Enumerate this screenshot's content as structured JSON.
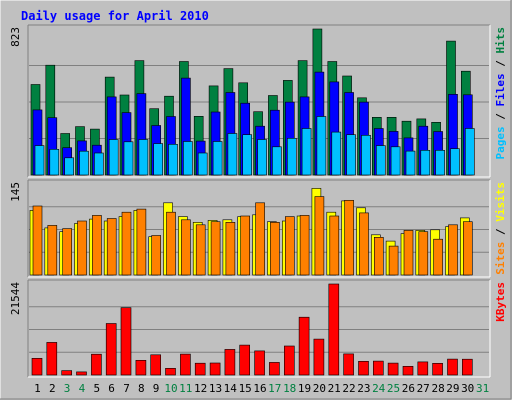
{
  "chart_data": {
    "type": "bar",
    "title": "Daily usage for April 2010",
    "colors": {
      "background": "#c0c0c0",
      "title": "#0000ff",
      "hits": "#008040",
      "files": "#0000ff",
      "pages": "#00c0ff",
      "visits": "#ffff00",
      "sites": "#ff8000",
      "kbytes": "#ff0000",
      "weekend": "#008040",
      "weekday": "#000000"
    },
    "days": [
      "1",
      "2",
      "3",
      "4",
      "5",
      "6",
      "7",
      "8",
      "9",
      "10",
      "11",
      "12",
      "13",
      "14",
      "15",
      "16",
      "17",
      "18",
      "19",
      "20",
      "21",
      "22",
      "23",
      "24",
      "25",
      "26",
      "27",
      "28",
      "29",
      "30",
      "31"
    ],
    "weekend_days": [
      "3",
      "4",
      "10",
      "11",
      "17",
      "18",
      "24",
      "25",
      "31"
    ],
    "panels": [
      {
        "id": "usage",
        "ytick": "823",
        "ymax": 823,
        "legend": [
          {
            "text": "Pages",
            "color": "#00c0ff"
          },
          {
            "text": " / ",
            "color": "#000000"
          },
          {
            "text": "Files",
            "color": "#0000ff"
          },
          {
            "text": " / ",
            "color": "#000000"
          },
          {
            "text": "Hits",
            "color": "#008040"
          }
        ],
        "series": [
          {
            "name": "Hits",
            "color": "#008040",
            "values": [
              510,
              619,
              234,
              273,
              259,
              552,
              451,
              645,
              374,
              444,
              640,
              331,
              502,
              600,
              520,
              357,
              448,
              533,
              645,
              823,
              640,
              558,
              435,
              325,
              325,
              303,
              316,
              297,
              755,
              585
            ]
          },
          {
            "name": "Files",
            "color": "#0000ff",
            "values": [
              367,
              323,
              154,
              192,
              168,
              440,
              352,
              459,
              279,
              330,
              546,
              191,
              355,
              465,
              405,
              275,
              365,
              411,
              440,
              580,
              525,
              465,
              411,
              262,
              246,
              209,
              275,
              245,
              455,
              452
            ]
          },
          {
            "name": "Pages",
            "color": "#00c0ff",
            "values": [
              166,
              145,
              97,
              134,
              124,
              200,
              187,
              200,
              177,
              173,
              189,
              124,
              189,
              234,
              227,
              200,
              159,
              207,
              262,
              330,
              242,
              227,
              224,
              166,
              159,
              135,
              139,
              139,
              148,
              262
            ]
          }
        ]
      },
      {
        "id": "visitors",
        "ytick": "145",
        "ymax": 145,
        "legend": [
          {
            "text": "Sites",
            "color": "#ff8000"
          },
          {
            "text": " / ",
            "color": "#000000"
          },
          {
            "text": "Visits",
            "color": "#ffff00"
          }
        ],
        "series": [
          {
            "name": "Visits",
            "color": "#ffff00",
            "values": [
              103,
              75,
              69,
              82,
              89,
              86,
              93,
              103,
              61,
              115,
              93,
              84,
              87,
              88,
              93,
              96,
              85,
              86,
              94,
              138,
              100,
              118,
              107,
              64,
              54,
              66,
              71,
              72,
              77,
              91
            ]
          },
          {
            "name": "Sites",
            "color": "#ff8000",
            "values": [
              110,
              79,
              74,
              86,
              95,
              90,
              100,
              105,
              63,
              100,
              88,
              80,
              85,
              84,
              94,
              115,
              84,
              93,
              95,
              125,
              94,
              119,
              99,
              60,
              46,
              71,
              69,
              57,
              80,
              85
            ]
          }
        ]
      },
      {
        "id": "kbytes",
        "ytick": "21544",
        "ymax": 21544,
        "legend": [
          {
            "text": "KBytes",
            "color": "#ff0000"
          }
        ],
        "series": [
          {
            "name": "KBytes",
            "color": "#ff0000",
            "values": [
              3960,
              7720,
              1040,
              740,
              4930,
              12190,
              15940,
              3490,
              4790,
              1580,
              4950,
              2800,
              2850,
              6050,
              7080,
              5710,
              2980,
              6870,
              13690,
              8500,
              21544,
              4990,
              3240,
              3300,
              2820,
              2070,
              3110,
              2780,
              3770,
              3740
            ]
          }
        ]
      }
    ]
  }
}
